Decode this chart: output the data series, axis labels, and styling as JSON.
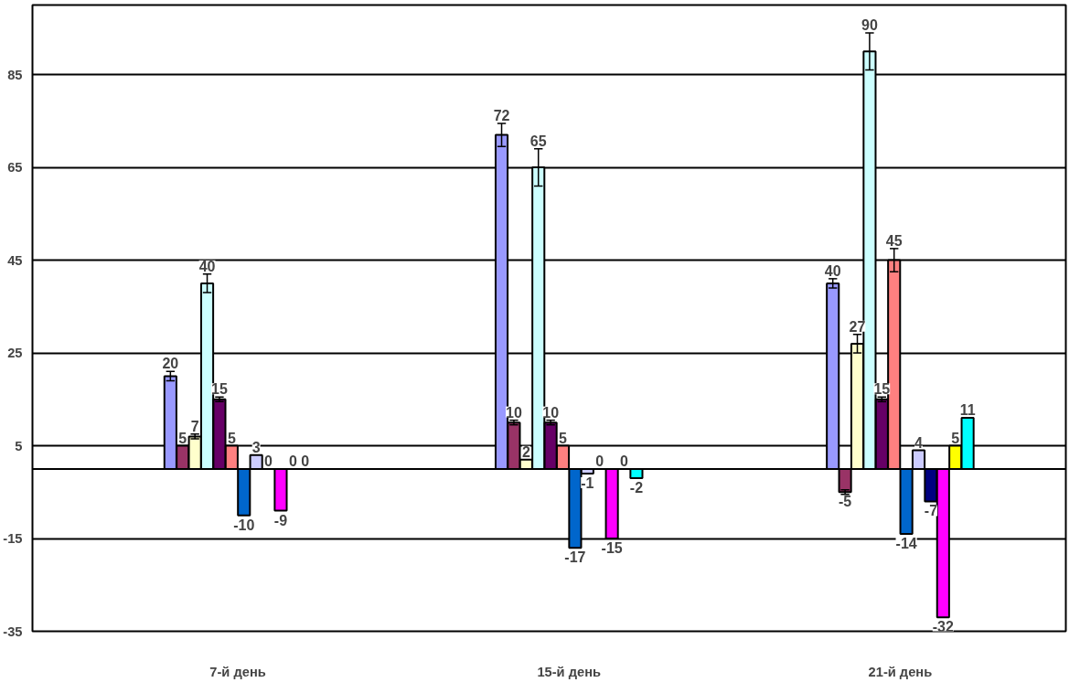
{
  "chart_data": {
    "type": "bar",
    "categories": [
      "7-й день",
      "15-й день",
      "21-й день"
    ],
    "ylim": [
      -35,
      100
    ],
    "yticks": [
      -35,
      -15,
      5,
      25,
      45,
      65,
      85
    ],
    "grid": "y",
    "data_labels": true,
    "series": [
      {
        "color": "#9999ff",
        "values": [
          20,
          72,
          40
        ],
        "errors": [
          1,
          2.5,
          1
        ]
      },
      {
        "color": "#993366",
        "values": [
          5,
          10,
          -5
        ],
        "errors": [
          null,
          0.5,
          0.5
        ]
      },
      {
        "color": "#ffffcc",
        "values": [
          7,
          2,
          27
        ],
        "errors": [
          0.5,
          null,
          2
        ]
      },
      {
        "color": "#ccffff",
        "values": [
          40,
          65,
          90
        ],
        "errors": [
          2,
          4,
          4
        ]
      },
      {
        "color": "#660066",
        "values": [
          15,
          10,
          15
        ],
        "errors": [
          0.5,
          0.5,
          0.5
        ]
      },
      {
        "color": "#ff8080",
        "values": [
          5,
          5,
          45
        ],
        "errors": [
          null,
          null,
          2.5
        ]
      },
      {
        "color": "#0066cc",
        "values": [
          -10,
          -17,
          -14
        ]
      },
      {
        "color": "#ccccff",
        "values": [
          3,
          -1,
          4
        ]
      },
      {
        "color": "#000080",
        "values": [
          0,
          0,
          -7
        ]
      },
      {
        "color": "#ff00ff",
        "values": [
          -9,
          -15,
          -32
        ]
      },
      {
        "color": "#ffff00",
        "values": [
          0,
          0,
          5
        ]
      },
      {
        "color": "#00ffff",
        "values": [
          0,
          -2,
          11
        ]
      }
    ]
  }
}
